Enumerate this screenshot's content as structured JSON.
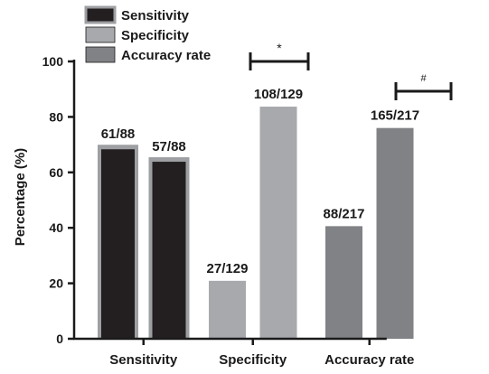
{
  "chart_data": {
    "type": "bar",
    "ylabel": "Percentage (%)",
    "ylim": [
      0,
      100
    ],
    "yticks": [
      0,
      20,
      40,
      60,
      80,
      100
    ],
    "groups": [
      {
        "label": "Sensitivity",
        "bars": [
          {
            "series": 0,
            "value": 69.3,
            "label": "61/88"
          },
          {
            "series": 0,
            "value": 64.8,
            "label": "57/88"
          }
        ]
      },
      {
        "label": "Specificity",
        "bars": [
          {
            "series": 1,
            "value": 20.9,
            "label": "27/129"
          },
          {
            "series": 1,
            "value": 83.7,
            "label": "108/129"
          }
        ]
      },
      {
        "label": "Accuracy rate",
        "bars": [
          {
            "series": 2,
            "value": 40.6,
            "label": "88/217"
          },
          {
            "series": 2,
            "value": 76.0,
            "label": "165/217"
          }
        ]
      }
    ],
    "legend": {
      "placement": "top-left",
      "items": [
        {
          "name": "Sensitivity",
          "color": "#231f20"
        },
        {
          "name": "Specificity",
          "color": "#a7a9ac"
        },
        {
          "name": "Accuracy rate",
          "color": "#808285"
        }
      ]
    },
    "significance": [
      {
        "group": 1,
        "symbol": "*",
        "y": 100
      },
      {
        "group": 2,
        "symbol": "#",
        "y": 90
      }
    ],
    "grid": false
  }
}
